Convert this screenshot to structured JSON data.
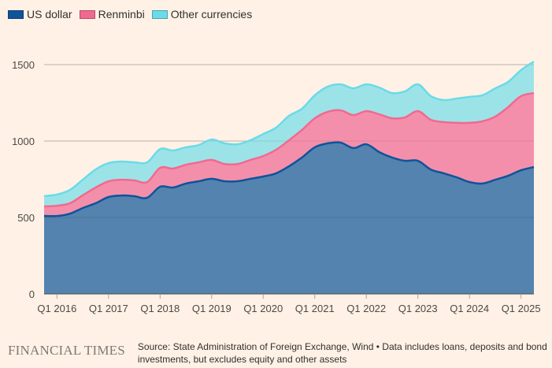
{
  "legend": [
    {
      "label": "US dollar",
      "color": "#0f5499"
    },
    {
      "label": "Renminbi",
      "color": "#f2698f"
    },
    {
      "label": "Other currencies",
      "color": "#6adbe8"
    }
  ],
  "footer": {
    "logo": "FINANCIAL TIMES",
    "source": "Source: State Administration of Foreign Exchange, Wind • Data includes loans, deposits and bond investments, but excludes equity and other assets"
  },
  "chart_data": {
    "type": "area",
    "stacked": true,
    "title": "",
    "xlabel": "",
    "ylabel": "",
    "ylim": [
      0,
      1500
    ],
    "yticks": [
      0,
      500,
      1000,
      1500
    ],
    "grid": true,
    "legend_position": "top-left",
    "x_tick_labels": [
      "Q1 2016",
      "Q1 2017",
      "Q1 2018",
      "Q1 2019",
      "Q1 2020",
      "Q1 2021",
      "Q1 2022",
      "Q1 2023",
      "Q1 2024",
      "Q1 2025"
    ],
    "x": [
      "Q4 2015",
      "Q1 2016",
      "Q2 2016",
      "Q3 2016",
      "Q4 2016",
      "Q1 2017",
      "Q2 2017",
      "Q3 2017",
      "Q4 2017",
      "Q1 2018",
      "Q2 2018",
      "Q3 2018",
      "Q4 2018",
      "Q1 2019",
      "Q2 2019",
      "Q3 2019",
      "Q4 2019",
      "Q1 2020",
      "Q2 2020",
      "Q3 2020",
      "Q4 2020",
      "Q1 2021",
      "Q2 2021",
      "Q3 2021",
      "Q4 2021",
      "Q1 2022",
      "Q2 2022",
      "Q3 2022",
      "Q4 2022",
      "Q1 2023",
      "Q2 2023",
      "Q3 2023",
      "Q4 2023",
      "Q1 2024",
      "Q2 2024",
      "Q3 2024",
      "Q4 2024",
      "Q1 2025",
      "Q2 2025"
    ],
    "series": [
      {
        "name": "US dollar",
        "color": "#0f5499",
        "fill": "#5483b0",
        "values": [
          510,
          510,
          525,
          562,
          593,
          634,
          644,
          639,
          629,
          701,
          696,
          722,
          737,
          753,
          737,
          737,
          753,
          768,
          789,
          835,
          892,
          959,
          985,
          990,
          954,
          979,
          928,
          892,
          871,
          871,
          814,
          789,
          763,
          732,
          722,
          747,
          773,
          809,
          830
        ]
      },
      {
        "name": "Renminbi",
        "color": "#f2698f",
        "fill": "#f48fab",
        "values": [
          62,
          67,
          68,
          83,
          103,
          103,
          103,
          103,
          103,
          124,
          124,
          123,
          124,
          123,
          113,
          113,
          123,
          134,
          154,
          170,
          180,
          190,
          206,
          211,
          216,
          217,
          247,
          257,
          284,
          325,
          325,
          335,
          356,
          387,
          407,
          413,
          449,
          485,
          484
        ]
      },
      {
        "name": "Other currencies",
        "color": "#6adbe8",
        "fill": "#9ce3e8",
        "values": [
          68,
          73,
          87,
          102,
          118,
          119,
          119,
          119,
          129,
          123,
          118,
          114,
          113,
          134,
          135,
          129,
          129,
          144,
          145,
          160,
          139,
          150,
          165,
          170,
          175,
          175,
          175,
          165,
          170,
          175,
          155,
          144,
          159,
          170,
          170,
          185,
          165,
          170,
          206
        ]
      }
    ]
  }
}
